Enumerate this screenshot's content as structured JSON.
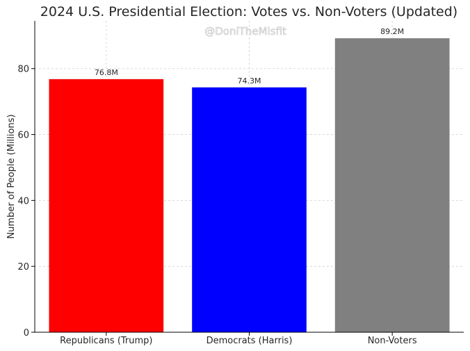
{
  "chart_data": {
    "type": "bar",
    "title": "2024 U.S. Presidential Election: Votes vs. Non-Voters (Updated)",
    "watermark": "@DoniTheMisfit",
    "xlabel": "",
    "ylabel": "Number of People (Millions)",
    "categories": [
      "Republicans (Trump)",
      "Democrats (Harris)",
      "Non-Voters"
    ],
    "values": [
      76.8,
      74.3,
      89.2
    ],
    "data_labels": [
      "76.8M",
      "74.3M",
      "89.2M"
    ],
    "colors": [
      "#ff0000",
      "#0000ff",
      "#808080"
    ],
    "ylim": [
      0,
      94.5
    ],
    "yticks": [
      0,
      20,
      40,
      60,
      80
    ],
    "ytick_labels": [
      "0",
      "20",
      "40",
      "60",
      "80"
    ],
    "grid": true
  }
}
